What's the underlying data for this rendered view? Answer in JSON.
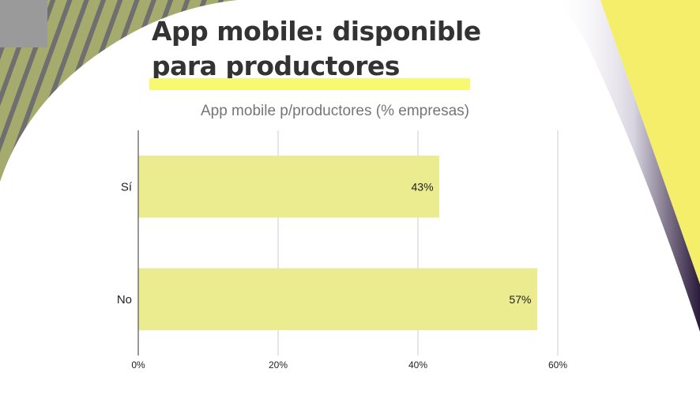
{
  "slide": {
    "title_line1": "App mobile: disponible",
    "title_line2": "para productores"
  },
  "colors": {
    "accent_yellow": "#f9f871",
    "bar_fill": "#ebeb8f",
    "stripe_green": "#a5ab6c",
    "stripe_gray": "#6f6f6f",
    "shadow_dark": "#3a2a4a"
  },
  "chart_data": {
    "type": "bar",
    "orientation": "horizontal",
    "title": "App mobile p/productores (% empresas)",
    "categories": [
      "Sí",
      "No"
    ],
    "values": [
      43,
      57
    ],
    "value_labels": [
      "43%",
      "57%"
    ],
    "xlim": [
      0,
      60
    ],
    "xticks": [
      "0%",
      "20%",
      "40%",
      "60%"
    ],
    "xtick_values": [
      0,
      20,
      40,
      60
    ],
    "grid": true,
    "legend": "none"
  }
}
